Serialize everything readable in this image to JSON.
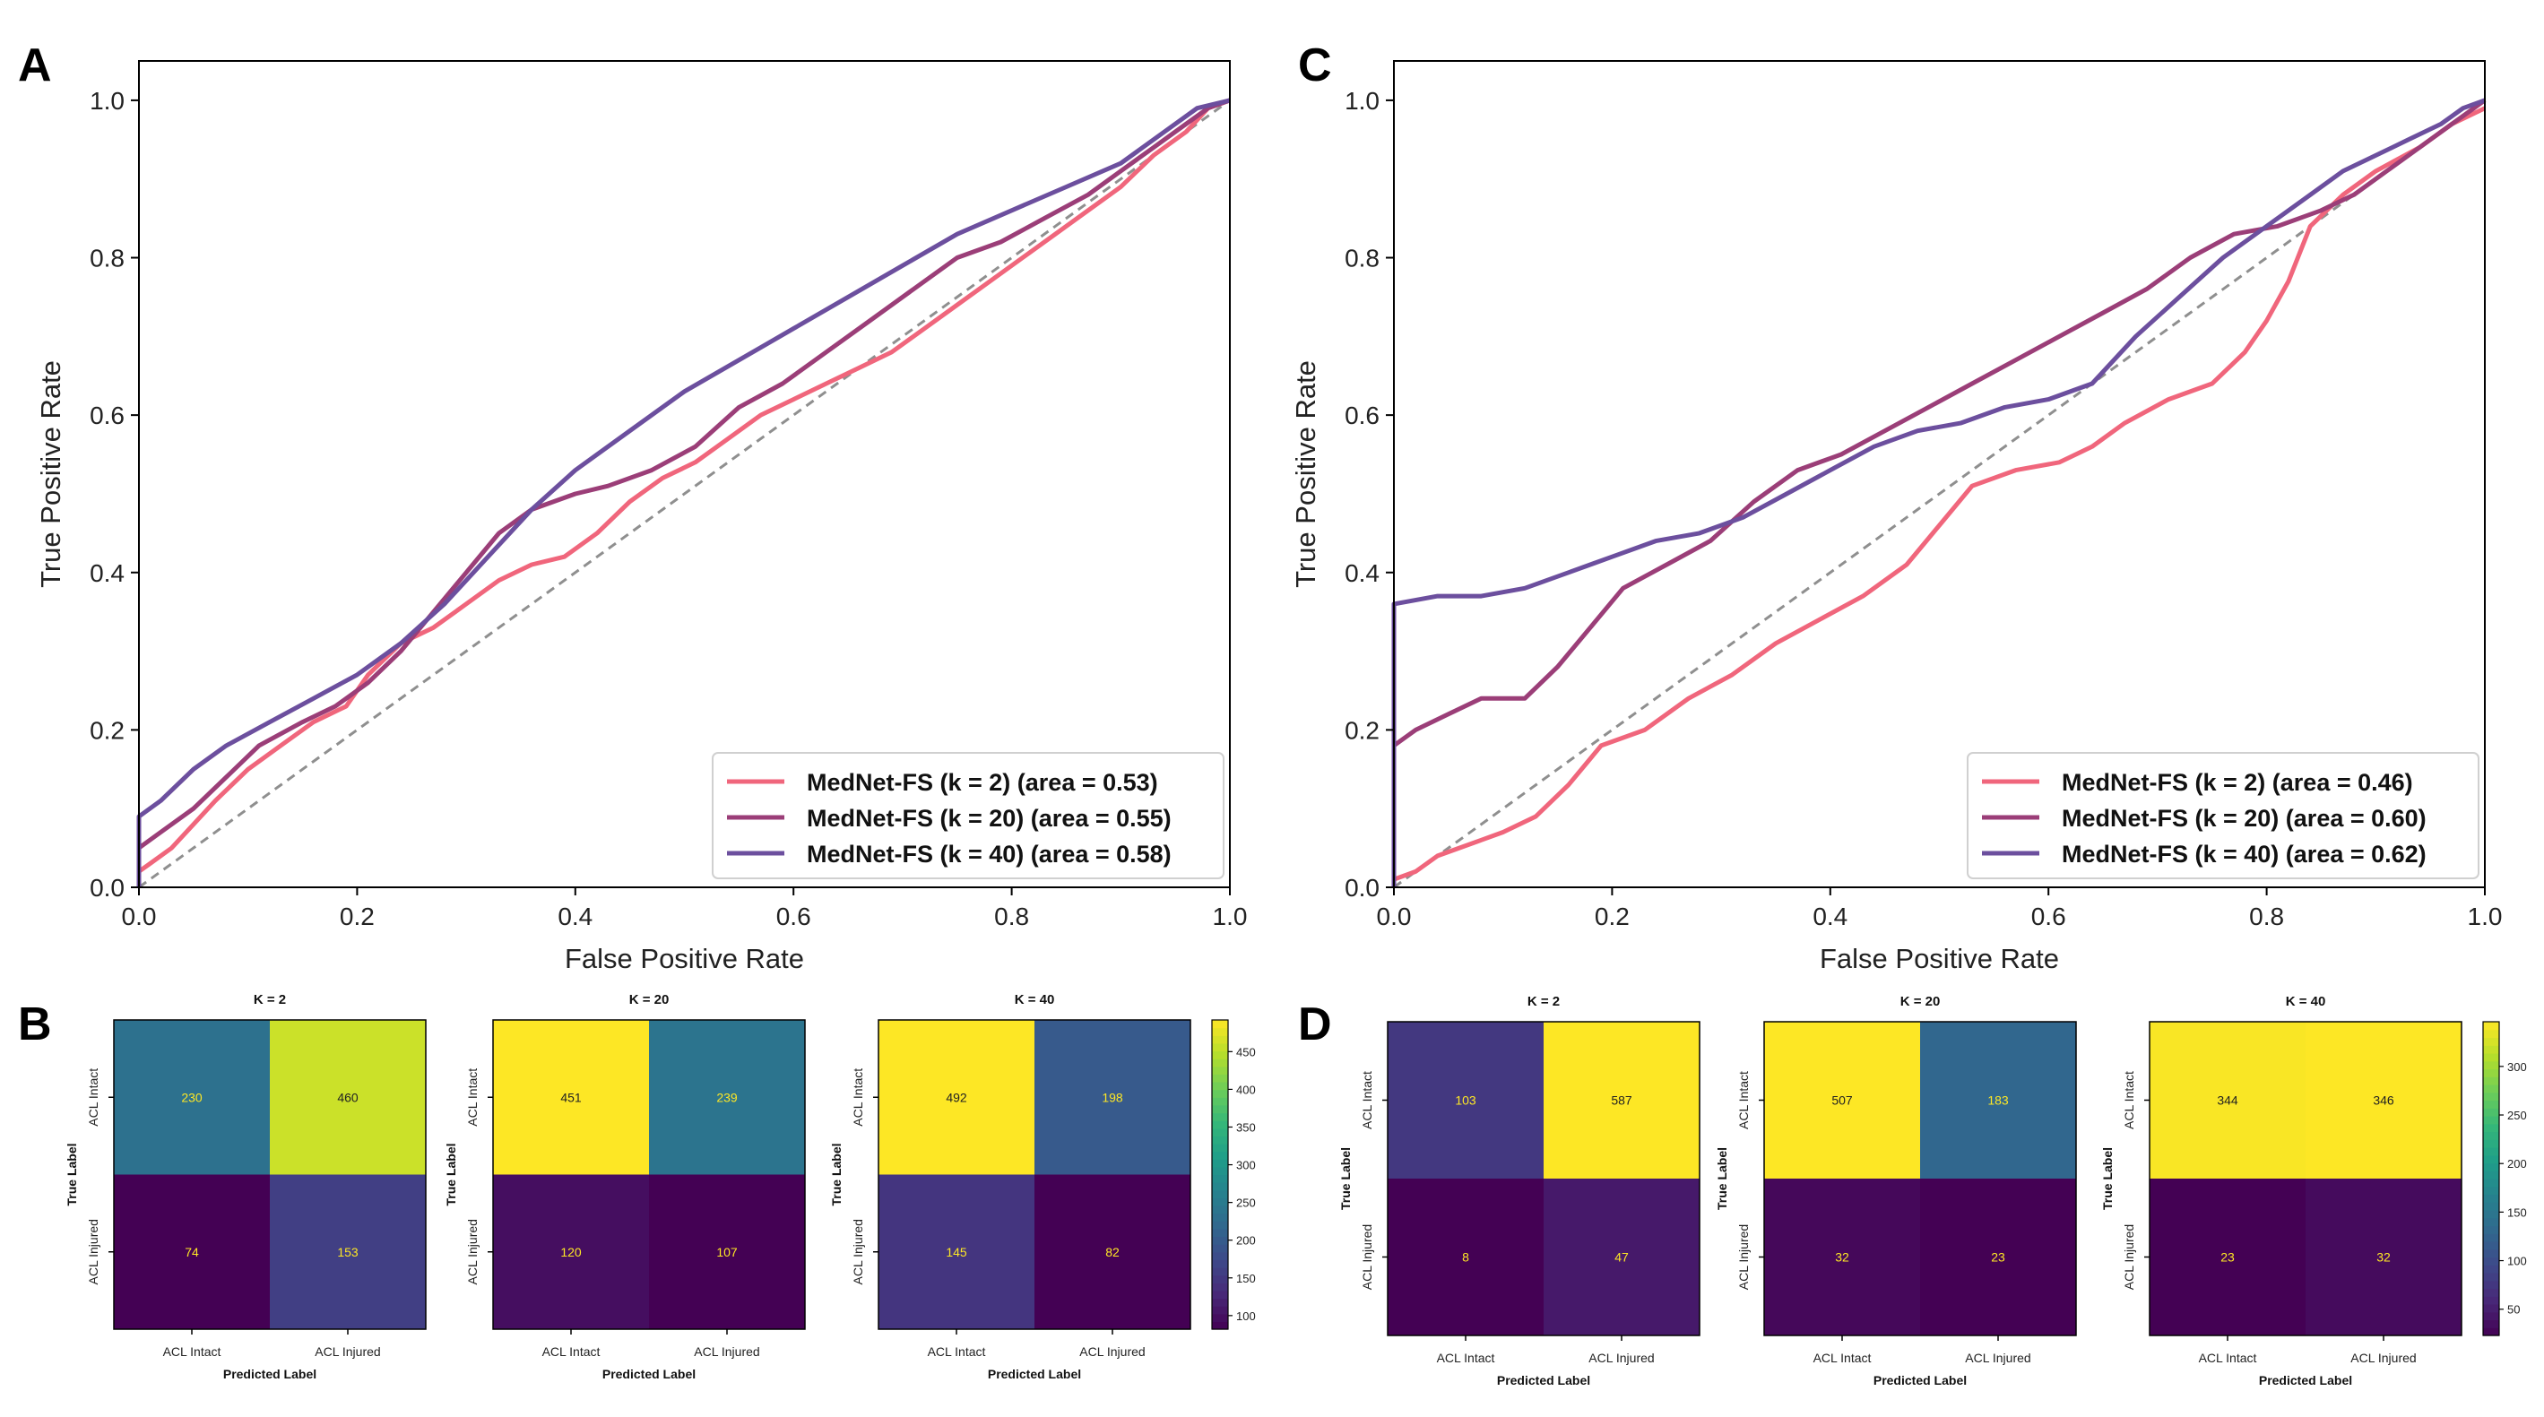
{
  "panels": {
    "A": {
      "letter": "A"
    },
    "B": {
      "letter": "B"
    },
    "C": {
      "letter": "C"
    },
    "D": {
      "letter": "D"
    }
  },
  "colors": {
    "k2": "#f0667c",
    "k20": "#9b3e78",
    "k40": "#6c4f9e",
    "diagonal": "#8f8f8f",
    "viridis": [
      "#440154",
      "#482878",
      "#3e4989",
      "#31688e",
      "#26828e",
      "#1f9e89",
      "#35b779",
      "#6ece58",
      "#b5de2b",
      "#fde725"
    ],
    "count_text_dark": "#fde725",
    "count_text_light": "#222222"
  },
  "chart_data": [
    {
      "id": "A",
      "type": "line",
      "xlabel": "False Positive Rate",
      "ylabel": "True Positive Rate",
      "xlim": [
        0,
        1
      ],
      "ylim": [
        0,
        1.05
      ],
      "xticks": [
        "0.0",
        "0.2",
        "0.4",
        "0.6",
        "0.8",
        "1.0"
      ],
      "yticks": [
        "0.0",
        "0.2",
        "0.4",
        "0.6",
        "0.8",
        "1.0"
      ],
      "legend_position": "lower-right",
      "series": [
        {
          "name": "MedNet-FS (k = 2) (area = 0.53)",
          "color_key": "k2",
          "x": [
            0,
            0,
            0.01,
            0.03,
            0.05,
            0.07,
            0.1,
            0.13,
            0.16,
            0.19,
            0.21,
            0.24,
            0.27,
            0.3,
            0.33,
            0.36,
            0.39,
            0.42,
            0.45,
            0.48,
            0.51,
            0.54,
            0.57,
            0.6,
            0.63,
            0.66,
            0.69,
            0.72,
            0.75,
            0.78,
            0.81,
            0.84,
            0.87,
            0.9,
            0.93,
            0.96,
            0.98,
            1.0
          ],
          "y": [
            0,
            0.02,
            0.03,
            0.05,
            0.08,
            0.11,
            0.15,
            0.18,
            0.21,
            0.23,
            0.27,
            0.31,
            0.33,
            0.36,
            0.39,
            0.41,
            0.42,
            0.45,
            0.49,
            0.52,
            0.54,
            0.57,
            0.6,
            0.62,
            0.64,
            0.66,
            0.68,
            0.71,
            0.74,
            0.77,
            0.8,
            0.83,
            0.86,
            0.89,
            0.93,
            0.96,
            0.99,
            1.0
          ]
        },
        {
          "name": "MedNet-FS (k = 20) (area = 0.55)",
          "color_key": "k20",
          "x": [
            0,
            0,
            0.02,
            0.05,
            0.08,
            0.11,
            0.15,
            0.18,
            0.21,
            0.24,
            0.27,
            0.3,
            0.33,
            0.36,
            0.4,
            0.43,
            0.47,
            0.51,
            0.55,
            0.59,
            0.63,
            0.67,
            0.71,
            0.75,
            0.79,
            0.83,
            0.87,
            0.9,
            0.93,
            0.96,
            0.98,
            1.0
          ],
          "y": [
            0,
            0.05,
            0.07,
            0.1,
            0.14,
            0.18,
            0.21,
            0.23,
            0.26,
            0.3,
            0.35,
            0.4,
            0.45,
            0.48,
            0.5,
            0.51,
            0.53,
            0.56,
            0.61,
            0.64,
            0.68,
            0.72,
            0.76,
            0.8,
            0.82,
            0.85,
            0.88,
            0.91,
            0.94,
            0.97,
            0.99,
            1.0
          ]
        },
        {
          "name": "MedNet-FS (k = 40) (area = 0.58)",
          "color_key": "k40",
          "x": [
            0,
            0,
            0.02,
            0.05,
            0.08,
            0.12,
            0.16,
            0.2,
            0.24,
            0.28,
            0.32,
            0.36,
            0.4,
            0.45,
            0.5,
            0.55,
            0.6,
            0.65,
            0.7,
            0.75,
            0.8,
            0.85,
            0.9,
            0.94,
            0.97,
            1.0
          ],
          "y": [
            0,
            0.09,
            0.11,
            0.15,
            0.18,
            0.21,
            0.24,
            0.27,
            0.31,
            0.36,
            0.42,
            0.48,
            0.53,
            0.58,
            0.63,
            0.67,
            0.71,
            0.75,
            0.79,
            0.83,
            0.86,
            0.89,
            0.92,
            0.96,
            0.99,
            1.0
          ]
        }
      ]
    },
    {
      "id": "C",
      "type": "line",
      "xlabel": "False Positive Rate",
      "ylabel": "True Positive Rate",
      "xlim": [
        0,
        1
      ],
      "ylim": [
        0,
        1.05
      ],
      "xticks": [
        "0.0",
        "0.2",
        "0.4",
        "0.6",
        "0.8",
        "1.0"
      ],
      "yticks": [
        "0.0",
        "0.2",
        "0.4",
        "0.6",
        "0.8",
        "1.0"
      ],
      "legend_position": "lower-right",
      "series": [
        {
          "name": "MedNet-FS (k = 2) (area = 0.46)",
          "color_key": "k2",
          "x": [
            0,
            0.02,
            0.04,
            0.06,
            0.08,
            0.1,
            0.13,
            0.16,
            0.19,
            0.23,
            0.27,
            0.31,
            0.35,
            0.39,
            0.43,
            0.47,
            0.5,
            0.53,
            0.57,
            0.61,
            0.64,
            0.67,
            0.71,
            0.75,
            0.78,
            0.8,
            0.82,
            0.84,
            0.87,
            0.9,
            0.94,
            0.97,
            1.0
          ],
          "y": [
            0.01,
            0.02,
            0.04,
            0.05,
            0.06,
            0.07,
            0.09,
            0.13,
            0.18,
            0.2,
            0.24,
            0.27,
            0.31,
            0.34,
            0.37,
            0.41,
            0.46,
            0.51,
            0.53,
            0.54,
            0.56,
            0.59,
            0.62,
            0.64,
            0.68,
            0.72,
            0.77,
            0.84,
            0.88,
            0.91,
            0.94,
            0.97,
            0.99
          ]
        },
        {
          "name": "MedNet-FS (k = 20) (area = 0.60)",
          "color_key": "k20",
          "x": [
            0,
            0,
            0.02,
            0.05,
            0.08,
            0.12,
            0.15,
            0.18,
            0.21,
            0.25,
            0.29,
            0.33,
            0.37,
            0.41,
            0.45,
            0.49,
            0.53,
            0.57,
            0.61,
            0.65,
            0.69,
            0.73,
            0.77,
            0.81,
            0.85,
            0.88,
            0.91,
            0.94,
            0.97,
            1.0
          ],
          "y": [
            0,
            0.18,
            0.2,
            0.22,
            0.24,
            0.24,
            0.28,
            0.33,
            0.38,
            0.41,
            0.44,
            0.49,
            0.53,
            0.55,
            0.58,
            0.61,
            0.64,
            0.67,
            0.7,
            0.73,
            0.76,
            0.8,
            0.83,
            0.84,
            0.86,
            0.88,
            0.91,
            0.94,
            0.97,
            1.0
          ]
        },
        {
          "name": "MedNet-FS (k = 40) (area = 0.62)",
          "color_key": "k40",
          "x": [
            0,
            0,
            0.04,
            0.08,
            0.12,
            0.16,
            0.2,
            0.24,
            0.28,
            0.32,
            0.36,
            0.4,
            0.44,
            0.48,
            0.52,
            0.56,
            0.6,
            0.64,
            0.68,
            0.72,
            0.76,
            0.8,
            0.84,
            0.87,
            0.9,
            0.93,
            0.96,
            0.98,
            1.0
          ],
          "y": [
            0,
            0.36,
            0.37,
            0.37,
            0.38,
            0.4,
            0.42,
            0.44,
            0.45,
            0.47,
            0.5,
            0.53,
            0.56,
            0.58,
            0.59,
            0.61,
            0.62,
            0.64,
            0.7,
            0.75,
            0.8,
            0.84,
            0.88,
            0.91,
            0.93,
            0.95,
            0.97,
            0.99,
            1.0
          ]
        }
      ]
    },
    {
      "id": "B1",
      "type": "heatmap",
      "title": "K = 2",
      "rows": [
        "ACL Intact",
        "ACL Injured"
      ],
      "cols": [
        "ACL Intact",
        "ACL Injured"
      ],
      "values": [
        [
          230,
          460
        ],
        [
          74,
          153
        ]
      ],
      "vmin": 74,
      "vmax": 492,
      "ylabel": "True Label",
      "xlabel": "Predicted Label"
    },
    {
      "id": "B2",
      "type": "heatmap",
      "title": "K = 20",
      "rows": [
        "ACL Intact",
        "ACL Injured"
      ],
      "cols": [
        "ACL Intact",
        "ACL Injured"
      ],
      "values": [
        [
          451,
          239
        ],
        [
          120,
          107
        ]
      ],
      "vmin": 107,
      "vmax": 451,
      "ylabel": "True Label",
      "xlabel": "Predicted Label"
    },
    {
      "id": "B3",
      "type": "heatmap",
      "title": "K = 40",
      "rows": [
        "ACL Intact",
        "ACL Injured"
      ],
      "cols": [
        "ACL Intact",
        "ACL Injured"
      ],
      "values": [
        [
          492,
          198
        ],
        [
          145,
          82
        ]
      ],
      "vmin": 82,
      "vmax": 492,
      "ylabel": "True Label",
      "xlabel": "Predicted Label",
      "colorbar": {
        "ticks": [
          100,
          150,
          200,
          250,
          300,
          350,
          400,
          450
        ],
        "labels": [
          "100",
          "150",
          "200",
          "250",
          "300",
          "350",
          "400",
          "450"
        ],
        "min": 82,
        "max": 492
      }
    },
    {
      "id": "D1",
      "type": "heatmap",
      "title": "K = 2",
      "rows": [
        "ACL Intact",
        "ACL Injured"
      ],
      "cols": [
        "ACL Intact",
        "ACL Injured"
      ],
      "values": [
        [
          103,
          587
        ],
        [
          8,
          47
        ]
      ],
      "vmin": 8,
      "vmax": 587,
      "ylabel": "True Label",
      "xlabel": "Predicted Label"
    },
    {
      "id": "D2",
      "type": "heatmap",
      "title": "K = 20",
      "rows": [
        "ACL Intact",
        "ACL Injured"
      ],
      "cols": [
        "ACL Intact",
        "ACL Injured"
      ],
      "values": [
        [
          507,
          183
        ],
        [
          32,
          23
        ]
      ],
      "vmin": 23,
      "vmax": 507,
      "ylabel": "True Label",
      "xlabel": "Predicted Label"
    },
    {
      "id": "D3",
      "type": "heatmap",
      "title": "K = 40",
      "rows": [
        "ACL Intact",
        "ACL Injured"
      ],
      "cols": [
        "ACL Intact",
        "ACL Injured"
      ],
      "values": [
        [
          344,
          346
        ],
        [
          23,
          32
        ]
      ],
      "vmin": 23,
      "vmax": 346,
      "ylabel": "True Label",
      "xlabel": "Predicted Label",
      "colorbar": {
        "ticks": [
          50,
          100,
          150,
          200,
          250,
          300
        ],
        "labels": [
          "50",
          "100",
          "150",
          "200",
          "250",
          "300"
        ],
        "min": 23,
        "max": 346
      }
    }
  ]
}
